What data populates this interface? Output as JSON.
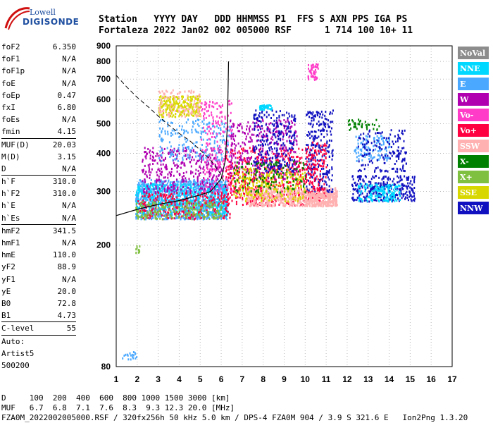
{
  "logo": {
    "line1": "Lowell",
    "line2": "DIGISONDE"
  },
  "header": {
    "line1": "Station   YYYY DAY   DDD HHMMSS P1  FFS S AXN PPS IGA PS",
    "line2": "Fortaleza 2022 Jan02 002 005000 RSF      1 714 100 10+ 11"
  },
  "params": [
    {
      "label": "foF2",
      "value": "6.350"
    },
    {
      "label": "foF1",
      "value": "N/A"
    },
    {
      "label": "foF1p",
      "value": "N/A"
    },
    {
      "label": "foE",
      "value": "N/A"
    },
    {
      "label": "foEp",
      "value": "0.47"
    },
    {
      "label": "fxI",
      "value": "6.80"
    },
    {
      "label": "foEs",
      "value": "N/A"
    },
    {
      "label": "fmin",
      "value": "4.15"
    },
    {
      "sep": true
    },
    {
      "label": "MUF(D)",
      "value": "20.03"
    },
    {
      "label": "M(D)",
      "value": "3.15"
    },
    {
      "label": "D",
      "value": "N/A"
    },
    {
      "sep": true
    },
    {
      "label": "h`F",
      "value": "310.0"
    },
    {
      "label": "h`F2",
      "value": "310.0"
    },
    {
      "label": "h`E",
      "value": "N/A"
    },
    {
      "label": "h`Es",
      "value": "N/A"
    },
    {
      "sep": true
    },
    {
      "label": "hmF2",
      "value": "341.5"
    },
    {
      "label": "hmF1",
      "value": "N/A"
    },
    {
      "label": "hmE",
      "value": "110.0"
    },
    {
      "label": "yF2",
      "value": "88.9"
    },
    {
      "label": "yF1",
      "value": "N/A"
    },
    {
      "label": "yE",
      "value": "20.0"
    },
    {
      "label": "B0",
      "value": "72.8"
    },
    {
      "label": "B1",
      "value": "4.73"
    },
    {
      "sep": true
    },
    {
      "label": "C-level",
      "value": "55"
    },
    {
      "sep": true
    },
    {
      "label": "Auto:",
      "value": ""
    },
    {
      "label": "Artist5",
      "value": ""
    },
    {
      "label": "500200",
      "value": ""
    }
  ],
  "footer": {
    "d_row": "D     100  200  400  600  800 1000 1500 3000 [km]",
    "muf_row": "MUF   6.7  6.8  7.1  7.6  8.3  9.3 12.3 20.0 [MHz]",
    "file_row": "FZA0M_2022002005000.RSF / 320fx256h 50 kHz 5.0 km / DPS-4 FZA0M 904 / 3.9 S 321.6 E   Ion2Png 1.3.20"
  },
  "legend": [
    {
      "label": "NoVal",
      "color": "#8c8c8c"
    },
    {
      "label": "NNE",
      "color": "#00d8ff"
    },
    {
      "label": "E",
      "color": "#4aa8ff"
    },
    {
      "label": "W",
      "color": "#b000b0"
    },
    {
      "label": "Vo-",
      "color": "#ff3cc8"
    },
    {
      "label": "Vo+",
      "color": "#ff0040"
    },
    {
      "label": "SSW",
      "color": "#ffb0b0"
    },
    {
      "label": "X-",
      "color": "#008000"
    },
    {
      "label": "X+",
      "color": "#80c040"
    },
    {
      "label": "SSE",
      "color": "#d8d800"
    },
    {
      "label": "NNW",
      "color": "#1010c0"
    }
  ],
  "chart_data": {
    "type": "scatter",
    "title": "",
    "xlabel": "",
    "ylabel": "",
    "xlim": [
      1,
      17
    ],
    "ylim": [
      80,
      900
    ],
    "y_scale": "log",
    "x_ticks": [
      1,
      2,
      3,
      4,
      5,
      6,
      7,
      8,
      9,
      10,
      11,
      12,
      13,
      14,
      15,
      16,
      17
    ],
    "y_ticks": [
      80,
      200,
      300,
      400,
      500,
      600,
      700,
      800,
      900
    ],
    "grid": true,
    "legend_position": "right",
    "echo_clusters": [
      {
        "name": "E",
        "x": [
          1.9,
          6.3
        ],
        "y": [
          245,
          330
        ],
        "count": 1100
      },
      {
        "name": "NNE",
        "x": [
          1.9,
          6.3
        ],
        "y": [
          250,
          320
        ],
        "count": 500
      },
      {
        "name": "Vo+",
        "x": [
          2.0,
          6.4
        ],
        "y": [
          245,
          300
        ],
        "count": 300
      },
      {
        "name": "X+",
        "x": [
          1.9,
          6.0
        ],
        "y": [
          245,
          280
        ],
        "count": 200
      },
      {
        "name": "W",
        "x": [
          2.2,
          6.0
        ],
        "y": [
          300,
          420
        ],
        "count": 350
      },
      {
        "name": "E",
        "x": [
          3.0,
          6.5
        ],
        "y": [
          380,
          520
        ],
        "count": 220
      },
      {
        "name": "SSE",
        "x": [
          3.0,
          5.0
        ],
        "y": [
          530,
          620
        ],
        "count": 250
      },
      {
        "name": "SSW",
        "x": [
          3.0,
          5.0
        ],
        "y": [
          530,
          650
        ],
        "count": 100
      },
      {
        "name": "Vo-",
        "x": [
          5.0,
          6.6
        ],
        "y": [
          300,
          600
        ],
        "count": 200
      },
      {
        "name": "Vo+",
        "x": [
          6.2,
          10.0
        ],
        "y": [
          270,
          420
        ],
        "count": 500
      },
      {
        "name": "SSW",
        "x": [
          7.2,
          11.5
        ],
        "y": [
          270,
          310
        ],
        "count": 500
      },
      {
        "name": "W",
        "x": [
          6.4,
          9.6
        ],
        "y": [
          330,
          520
        ],
        "count": 350
      },
      {
        "name": "NNW",
        "x": [
          7.5,
          9.5
        ],
        "y": [
          350,
          560
        ],
        "count": 250
      },
      {
        "name": "SSE",
        "x": [
          6.5,
          10.0
        ],
        "y": [
          280,
          360
        ],
        "count": 250
      },
      {
        "name": "NNE",
        "x": [
          7.8,
          8.4
        ],
        "y": [
          560,
          580
        ],
        "count": 40
      },
      {
        "name": "X-",
        "x": [
          6.6,
          10.0
        ],
        "y": [
          300,
          380
        ],
        "count": 120
      },
      {
        "name": "NNW",
        "x": [
          10.0,
          11.3
        ],
        "y": [
          300,
          560
        ],
        "count": 260
      },
      {
        "name": "Vo+",
        "x": [
          10.0,
          11.0
        ],
        "y": [
          280,
          440
        ],
        "count": 150
      },
      {
        "name": "SSW",
        "x": [
          10.0,
          11.5
        ],
        "y": [
          270,
          300
        ],
        "count": 200
      },
      {
        "name": "Vo-",
        "x": [
          10.1,
          10.6
        ],
        "y": [
          700,
          790
        ],
        "count": 50
      },
      {
        "name": "NNW",
        "x": [
          12.2,
          15.2
        ],
        "y": [
          280,
          340
        ],
        "count": 300
      },
      {
        "name": "E",
        "x": [
          12.3,
          14.0
        ],
        "y": [
          380,
          460
        ],
        "count": 120
      },
      {
        "name": "NNE",
        "x": [
          12.5,
          14.5
        ],
        "y": [
          280,
          320
        ],
        "count": 150
      },
      {
        "name": "NNW",
        "x": [
          12.5,
          14.8
        ],
        "y": [
          350,
          480
        ],
        "count": 150
      },
      {
        "name": "X-",
        "x": [
          12.0,
          13.5
        ],
        "y": [
          480,
          520
        ],
        "count": 40
      },
      {
        "name": "X+",
        "x": [
          1.9,
          2.1
        ],
        "y": [
          190,
          200
        ],
        "count": 12
      },
      {
        "name": "E",
        "x": [
          1.2,
          2.0
        ],
        "y": [
          85,
          90
        ],
        "count": 18
      }
    ],
    "profile_curve": {
      "x": [
        1.0,
        2.0,
        3.0,
        4.0,
        5.0,
        5.5,
        6.0,
        6.2,
        6.3,
        6.35
      ],
      "y": [
        250,
        262,
        272,
        280,
        292,
        300,
        330,
        380,
        500,
        800
      ]
    },
    "dashed_curve": {
      "x": [
        1.0,
        1.5,
        2.0,
        2.5,
        3.0,
        3.5,
        4.0,
        4.5,
        5.0,
        5.5,
        6.0,
        6.3
      ],
      "y": [
        720,
        660,
        610,
        570,
        530,
        495,
        465,
        440,
        410,
        380,
        340,
        300
      ]
    }
  }
}
